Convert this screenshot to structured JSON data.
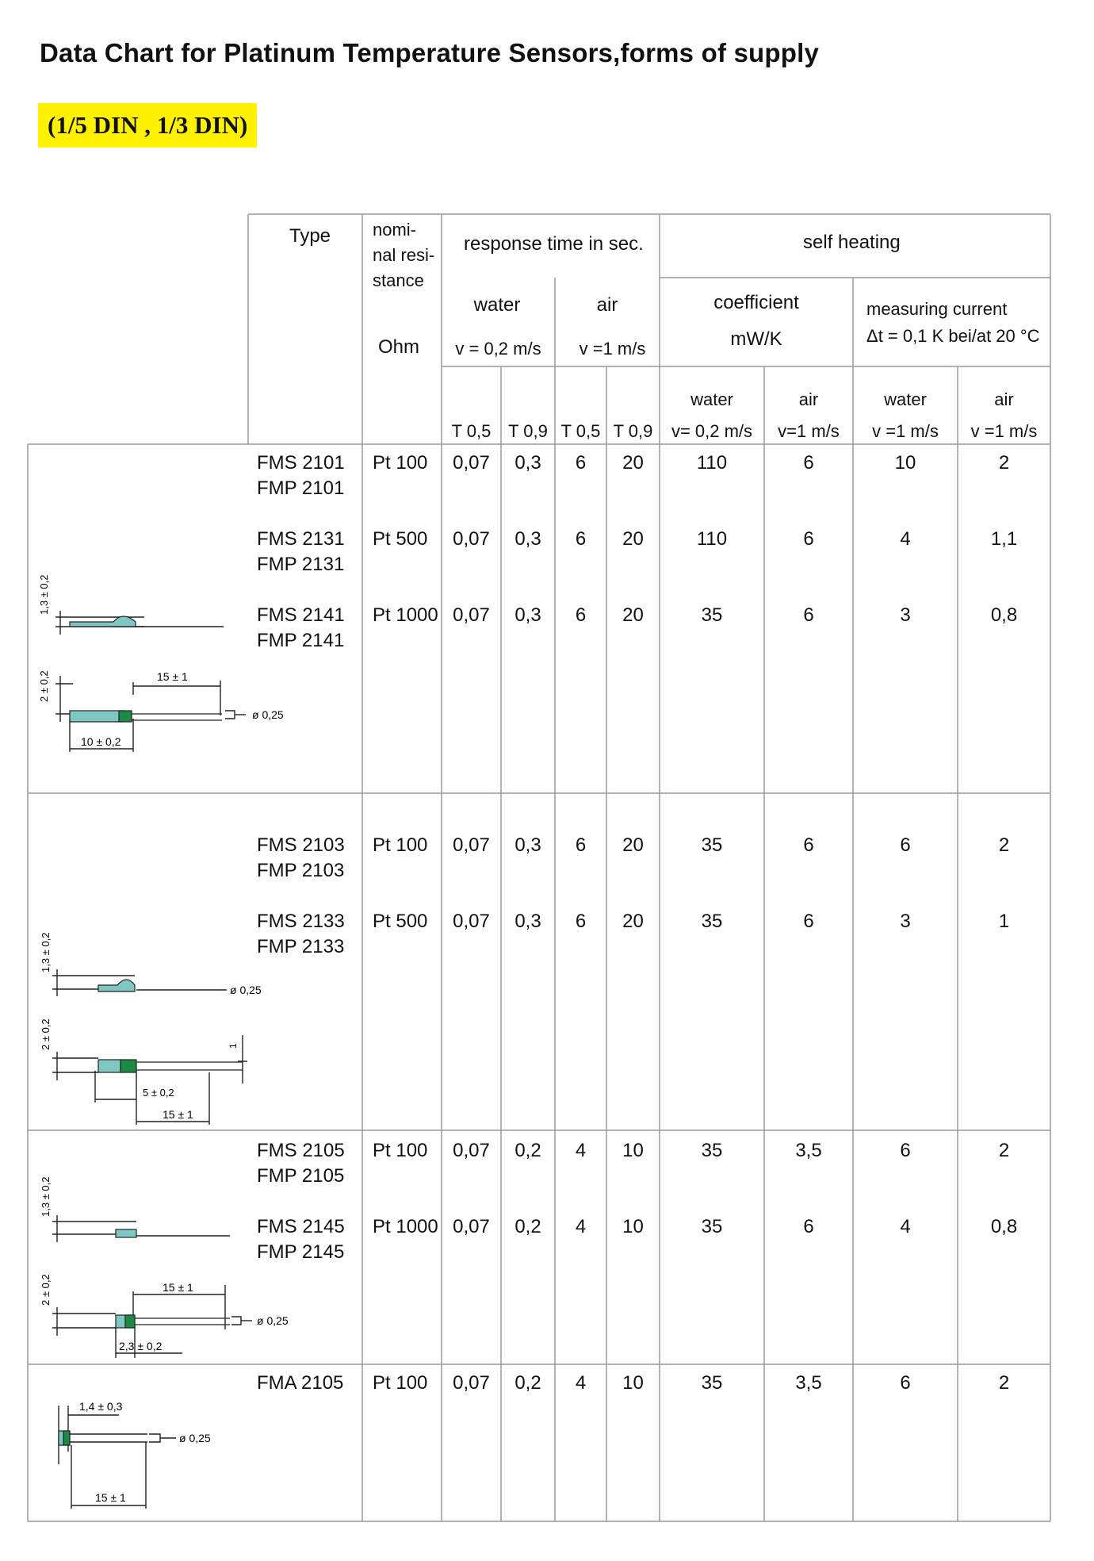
{
  "title": "Data Chart for Platinum Temperature Sensors,forms of supply",
  "subtitle": "(1/5 DIN , 1/3 DIN)",
  "header": {
    "type": "Type",
    "nominal": [
      "nomi-",
      "nal resi-",
      "stance"
    ],
    "ohm": "Ohm",
    "response_time": "response time in sec.",
    "self_heating": "self heating",
    "water": "water",
    "air": "air",
    "v_water": "v = 0,2 m/s",
    "v_air": "v =1 m/s",
    "coefficient": "coefficient",
    "mwk": "mW/K",
    "measuring_current": "measuring current",
    "delta_t": "Δt = 0,1 K bei/at 20 °C",
    "t05a": "T 0,5",
    "t09a": "T 0,9",
    "t05b": "T 0,5",
    "t09b": "T 0,9",
    "coef_water": "water",
    "coef_water_v": "v= 0,2 m/s",
    "coef_air": "air",
    "coef_air_v": "v=1 m/s",
    "mc_water": "water",
    "mc_water_v": "v =1 m/s",
    "mc_air": "air",
    "mc_air_v": "v =1 m/s"
  },
  "rows": [
    {
      "type1": "FMS 2101",
      "type2": "FMP 2101",
      "res": "Pt 100",
      "w05": "0,07",
      "w09": "0,3",
      "a05": "6",
      "a09": "20",
      "cw": "110",
      "ca": "6",
      "mw": "10",
      "ma": "2"
    },
    {
      "type1": "FMS 2131",
      "type2": "FMP 2131",
      "res": "Pt 500",
      "w05": "0,07",
      "w09": "0,3",
      "a05": "6",
      "a09": "20",
      "cw": "110",
      "ca": "6",
      "mw": "4",
      "ma": "1,1"
    },
    {
      "type1": "FMS 2141",
      "type2": "FMP 2141",
      "res": "Pt 1000",
      "w05": "0,07",
      "w09": "0,3",
      "a05": "6",
      "a09": "20",
      "cw": "35",
      "ca": "6",
      "mw": "3",
      "ma": "0,8"
    },
    {
      "type1": "FMS 2103",
      "type2": "FMP 2103",
      "res": "Pt 100",
      "w05": "0,07",
      "w09": "0,3",
      "a05": "6",
      "a09": "20",
      "cw": "35",
      "ca": "6",
      "mw": "6",
      "ma": "2"
    },
    {
      "type1": "FMS 2133",
      "type2": "FMP 2133",
      "res": "Pt 500",
      "w05": "0,07",
      "w09": "0,3",
      "a05": "6",
      "a09": "20",
      "cw": "35",
      "ca": "6",
      "mw": "3",
      "ma": "1"
    },
    {
      "type1": "FMS 2105",
      "type2": "FMP 2105",
      "res": "Pt 100",
      "w05": "0,07",
      "w09": "0,2",
      "a05": "4",
      "a09": "10",
      "cw": "35",
      "ca": "3,5",
      "mw": "6",
      "ma": "2"
    },
    {
      "type1": "FMS 2145",
      "type2": "FMP 2145",
      "res": "Pt 1000",
      "w05": "0,07",
      "w09": "0,2",
      "a05": "4",
      "a09": "10",
      "cw": "35",
      "ca": "6",
      "mw": "4",
      "ma": "0,8"
    },
    {
      "type1": "FMA 2105",
      "type2": "",
      "res": "Pt 100",
      "w05": "0,07",
      "w09": "0,2",
      "a05": "4",
      "a09": "10",
      "cw": "35",
      "ca": "3,5",
      "mw": "6",
      "ma": "2"
    }
  ],
  "drawings": {
    "d1": {
      "h1": "1,3 ± 0,2",
      "h2": "2 ± 0,2",
      "len": "15 ± 1",
      "body": "10 ± 0,2",
      "wire": "ø 0,25"
    },
    "d2": {
      "h1": "1,3 ± 0,2",
      "h2": "2 ± 0,2",
      "wire": "ø 0,25",
      "len1": "5 ± 0,2",
      "len2": "15 ± 1",
      "tick": "1"
    },
    "d3": {
      "h1": "1,3 ± 0,2",
      "h2": "2 ± 0,2",
      "len": "15 ± 1",
      "wire": "ø 0,25",
      "body": "2,3 ± 0,2"
    },
    "d4": {
      "top": "1,4 ± 0,3",
      "wire": "ø 0,25",
      "len": "15 ± 1"
    }
  },
  "colors": {
    "highlight": "#fff200",
    "sensor_body": "#7fc7c3",
    "sensor_dark": "#1a8a44",
    "grid": "#9a9a9a"
  }
}
